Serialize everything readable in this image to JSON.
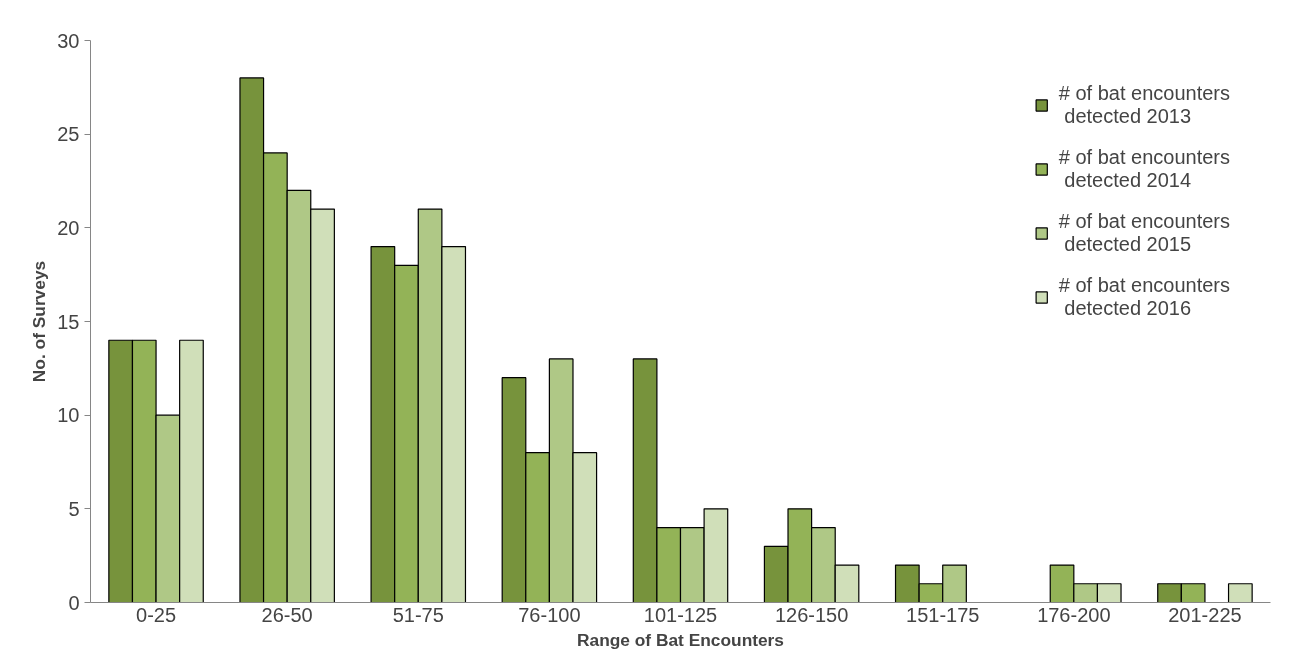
{
  "chart_data": {
    "type": "bar",
    "xlabel": "Range of Bat Encounters",
    "ylabel": "No. of Surveys",
    "categories": [
      "0-25",
      "26-50",
      "51-75",
      "76-100",
      "101-125",
      "126-150",
      "151-175",
      "176-200",
      "201-225"
    ],
    "series": [
      {
        "name": "# of bat encounters detected 2013",
        "color": "#77933c",
        "values": [
          14,
          28,
          19,
          12,
          13,
          3,
          2,
          0,
          1
        ]
      },
      {
        "name": "# of bat encounters detected 2014",
        "color": "#93b357",
        "values": [
          14,
          24,
          18,
          8,
          4,
          5,
          1,
          2,
          1
        ]
      },
      {
        "name": "# of bat encounters detected 2015",
        "color": "#afc886",
        "values": [
          10,
          22,
          21,
          13,
          4,
          4,
          2,
          1,
          0
        ]
      },
      {
        "name": "# of bat encounters detected 2016",
        "color": "#d0dfb9",
        "values": [
          14,
          21,
          19,
          8,
          5,
          2,
          0,
          1,
          1
        ]
      }
    ],
    "ylim": [
      0,
      30
    ],
    "yticks": [
      0,
      5,
      10,
      15,
      20,
      25,
      30
    ],
    "grid": false,
    "legend": "top right"
  }
}
